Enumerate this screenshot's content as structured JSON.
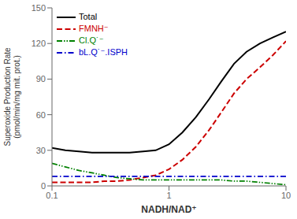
{
  "chart_data": {
    "type": "line",
    "xlabel": "NADH/NAD⁺",
    "ylabel": "Superoxide Production Rate\n(pmol/min/mg mit. prot.)",
    "x": [
      0.1,
      0.13,
      0.17,
      0.22,
      0.28,
      0.36,
      0.46,
      0.6,
      0.77,
      1.0,
      1.3,
      1.7,
      2.2,
      2.8,
      3.6,
      4.6,
      6.0,
      7.7,
      10.0
    ],
    "series": [
      {
        "name": "Total",
        "color": "#000000",
        "line_style": "solid",
        "values": [
          32,
          30,
          29,
          28,
          28,
          28,
          28,
          29,
          30,
          35,
          45,
          58,
          73,
          88,
          103,
          113,
          120,
          125,
          130
        ]
      },
      {
        "name": "FMNH⁻",
        "color": "#cc0000",
        "line_style": "dashed",
        "values": [
          3,
          3,
          3,
          3,
          4,
          4,
          5,
          7,
          9,
          14,
          22,
          33,
          47,
          62,
          78,
          90,
          100,
          110,
          122
        ]
      },
      {
        "name": "Cl.Q˙⁻",
        "color": "#008000",
        "line_style": "dashdotdot",
        "values": [
          19,
          16,
          13,
          11,
          9,
          7,
          6,
          5,
          5,
          5,
          5,
          5,
          5,
          5,
          4,
          4,
          3,
          2,
          1
        ]
      },
      {
        "name": "bL.Q˙⁻.ISPH",
        "color": "#0000cc",
        "line_style": "dashdot",
        "values": [
          8,
          8,
          8,
          8,
          8,
          8,
          8,
          8,
          8,
          8,
          8,
          8,
          8,
          8,
          8,
          8,
          8,
          8,
          8
        ]
      }
    ],
    "xlim": [
      0.1,
      10
    ],
    "xticks": [
      0.1,
      1,
      10
    ],
    "ylim": [
      0,
      150
    ],
    "yticks": [
      0,
      30,
      60,
      90,
      120,
      150
    ],
    "log": "x",
    "grid": false,
    "legend": "upper left"
  }
}
